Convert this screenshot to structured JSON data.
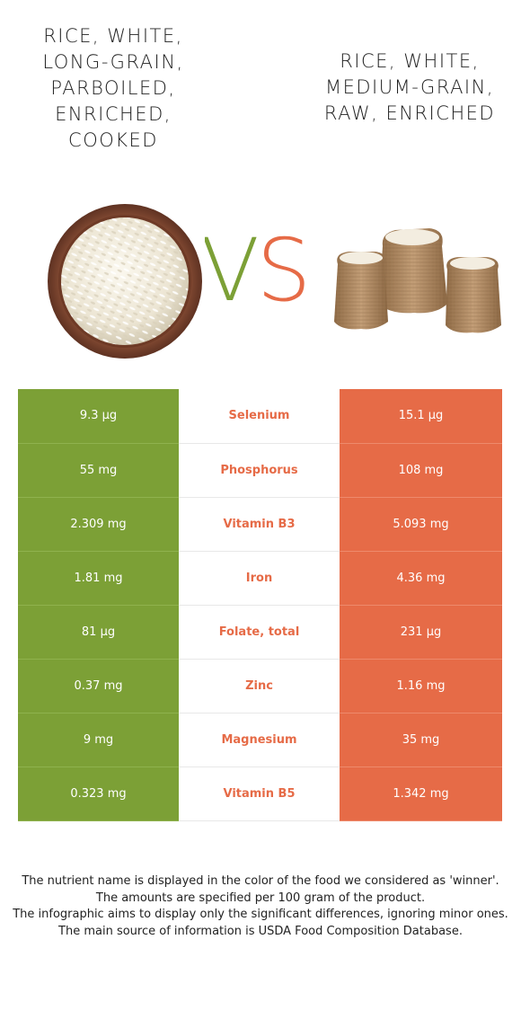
{
  "foods": {
    "left": {
      "name": "RICE, WHITE, LONG-GRAIN, PARBOILED, ENRICHED, COOKED",
      "color": "#7ca036",
      "image": "bowl-of-white-rice"
    },
    "right": {
      "name": "RICE, WHITE, MEDIUM-GRAIN, RAW, ENRICHED",
      "color": "#e66b47",
      "image": "burlap-sacks-of-rice"
    }
  },
  "vs": {
    "v": "V",
    "s": "S"
  },
  "rows": [
    {
      "nutrient": "Selenium",
      "left": "9.3 µg",
      "right": "15.1 µg",
      "winner": "right"
    },
    {
      "nutrient": "Phosphorus",
      "left": "55 mg",
      "right": "108 mg",
      "winner": "right"
    },
    {
      "nutrient": "Vitamin B3",
      "left": "2.309 mg",
      "right": "5.093 mg",
      "winner": "right"
    },
    {
      "nutrient": "Iron",
      "left": "1.81 mg",
      "right": "4.36 mg",
      "winner": "right"
    },
    {
      "nutrient": "Folate, total",
      "left": "81 µg",
      "right": "231 µg",
      "winner": "right"
    },
    {
      "nutrient": "Zinc",
      "left": "0.37 mg",
      "right": "1.16 mg",
      "winner": "right"
    },
    {
      "nutrient": "Magnesium",
      "left": "9 mg",
      "right": "35 mg",
      "winner": "right"
    },
    {
      "nutrient": "Vitamin B5",
      "left": "0.323 mg",
      "right": "1.342 mg",
      "winner": "right"
    }
  ],
  "footer": {
    "line1": "The nutrient name is displayed in the color of the food we considered as 'winner'.",
    "line2": "The amounts are specified per 100 gram of the product.",
    "line3": "The infographic aims to display only the significant differences, ignoring minor ones.",
    "line4": "The main source of information is USDA Food Composition Database."
  }
}
